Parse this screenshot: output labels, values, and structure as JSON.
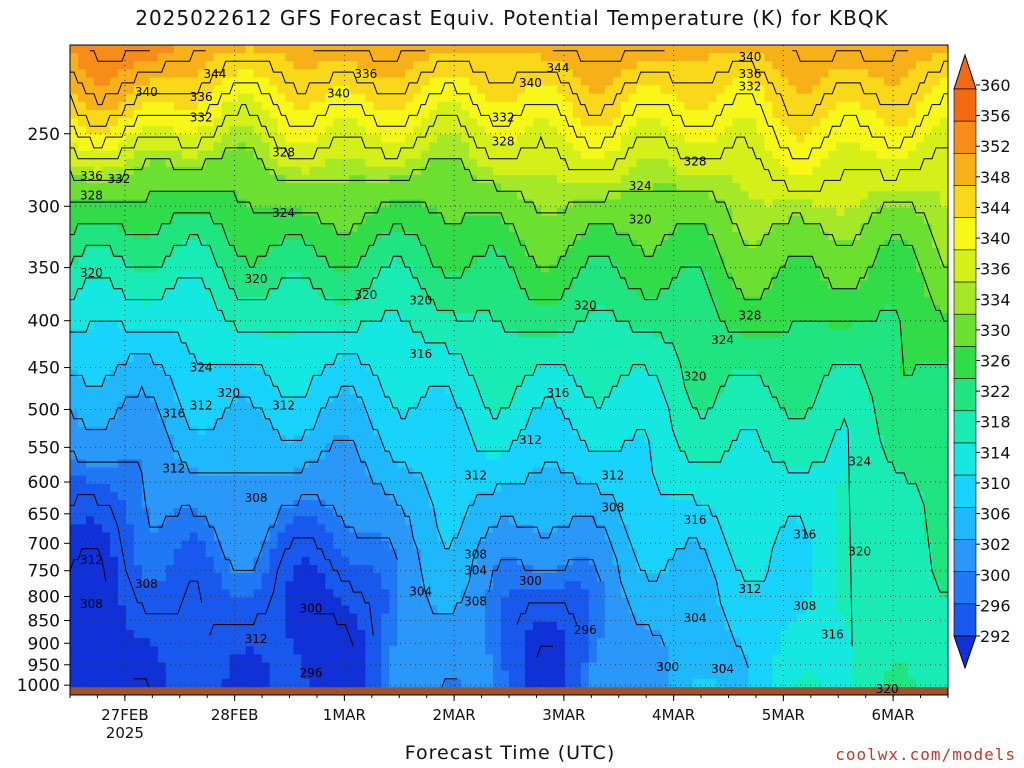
{
  "chart_data": {
    "type": "heatmap",
    "title": "2025022612 GFS Forecast Equiv. Potential Temperature (K) for KBQK",
    "xlabel": "Forecast Time (UTC)",
    "ylabel": "",
    "credit": "coolwx.com/models",
    "x_ticks": [
      "27FEB",
      "28FEB",
      "1MAR",
      "2MAR",
      "3MAR",
      "4MAR",
      "5MAR",
      "6MAR"
    ],
    "x_tick_sublabel": "2025",
    "x_range": [
      "2025-02-26T12",
      "2025-03-06T12"
    ],
    "y_ticks": [
      250,
      300,
      350,
      400,
      450,
      500,
      550,
      600,
      650,
      700,
      750,
      800,
      850,
      900,
      950,
      1000
    ],
    "y_range": [
      200,
      1025
    ],
    "y_scale": "log",
    "colorbar": {
      "levels": [
        292,
        296,
        300,
        302,
        306,
        310,
        314,
        318,
        322,
        326,
        330,
        334,
        336,
        340,
        344,
        348,
        352,
        356,
        360
      ],
      "colors": [
        "#1030d8",
        "#1858ec",
        "#2078f4",
        "#2a98f8",
        "#20b8fc",
        "#18d4fc",
        "#14e8e0",
        "#18ecb4",
        "#20e480",
        "#30dc48",
        "#6ce030",
        "#a4e828",
        "#d4f018",
        "#f8f818",
        "#f8d818",
        "#f8b018",
        "#f88c18",
        "#f46a10"
      ],
      "extend": "both"
    },
    "grid": true,
    "contour_labels": [
      {
        "t": "2025-02-27T00",
        "p": 225,
        "v": "340"
      },
      {
        "t": "2025-02-27T15",
        "p": 215,
        "v": "344"
      },
      {
        "t": "2025-02-27T12",
        "p": 228,
        "v": "336"
      },
      {
        "t": "2025-02-27T12",
        "p": 240,
        "v": "332"
      },
      {
        "t": "2025-02-26T12",
        "p": 278,
        "v": "336"
      },
      {
        "t": "2025-02-26T12",
        "p": 292,
        "v": "328"
      },
      {
        "t": "2025-02-26T18",
        "p": 280,
        "v": "332"
      },
      {
        "t": "2025-02-26T12",
        "p": 355,
        "v": "320"
      },
      {
        "t": "2025-02-28T06",
        "p": 262,
        "v": "328"
      },
      {
        "t": "2025-02-28T06",
        "p": 305,
        "v": "324"
      },
      {
        "t": "2025-02-28T18",
        "p": 226,
        "v": "340"
      },
      {
        "t": "2025-03-01T00",
        "p": 215,
        "v": "336"
      },
      {
        "t": "2025-03-01T00",
        "p": 375,
        "v": "320"
      },
      {
        "t": "2025-02-28T00",
        "p": 360,
        "v": "320"
      },
      {
        "t": "2025-03-01T12",
        "p": 435,
        "v": "316"
      },
      {
        "t": "2025-03-01T12",
        "p": 380,
        "v": "320"
      },
      {
        "t": "2025-03-02T06",
        "p": 255,
        "v": "328"
      },
      {
        "t": "2025-03-02T06",
        "p": 240,
        "v": "332"
      },
      {
        "t": "2025-03-02T12",
        "p": 220,
        "v": "340"
      },
      {
        "t": "2025-03-02T18",
        "p": 212,
        "v": "344"
      },
      {
        "t": "2025-03-03T12",
        "p": 285,
        "v": "324"
      },
      {
        "t": "2025-03-03T12",
        "p": 310,
        "v": "320"
      },
      {
        "t": "2025-03-04T00",
        "p": 268,
        "v": "328"
      },
      {
        "t": "2025-03-04T12",
        "p": 206,
        "v": "340"
      },
      {
        "t": "2025-03-04T12",
        "p": 215,
        "v": "336"
      },
      {
        "t": "2025-03-04T12",
        "p": 222,
        "v": "332"
      },
      {
        "t": "2025-03-03T00",
        "p": 385,
        "v": "320"
      },
      {
        "t": "2025-03-04T12",
        "p": 395,
        "v": "328"
      },
      {
        "t": "2025-03-04T06",
        "p": 420,
        "v": "324"
      },
      {
        "t": "2025-03-04T00",
        "p": 460,
        "v": "320"
      },
      {
        "t": "2025-02-27T12",
        "p": 450,
        "v": "324"
      },
      {
        "t": "2025-02-27T18",
        "p": 480,
        "v": "320"
      },
      {
        "t": "2025-02-27T06",
        "p": 505,
        "v": "316"
      },
      {
        "t": "2025-02-27T12",
        "p": 495,
        "v": "312"
      },
      {
        "t": "2025-02-28T06",
        "p": 495,
        "v": "312"
      },
      {
        "t": "2025-03-02T18",
        "p": 480,
        "v": "316"
      },
      {
        "t": "2025-03-02T12",
        "p": 540,
        "v": "312"
      },
      {
        "t": "2025-03-03T06",
        "p": 590,
        "v": "312"
      },
      {
        "t": "2025-03-05T12",
        "p": 570,
        "v": "324"
      },
      {
        "t": "2025-03-02T00",
        "p": 590,
        "v": "312"
      },
      {
        "t": "2025-02-27T06",
        "p": 580,
        "v": "312"
      },
      {
        "t": "2025-02-28T00",
        "p": 625,
        "v": "308"
      },
      {
        "t": "2025-03-03T06",
        "p": 640,
        "v": "308"
      },
      {
        "t": "2025-03-04T00",
        "p": 660,
        "v": "316"
      },
      {
        "t": "2025-03-05T00",
        "p": 685,
        "v": "316"
      },
      {
        "t": "2025-03-05T12",
        "p": 715,
        "v": "320"
      },
      {
        "t": "2025-02-26T12",
        "p": 730,
        "v": "312"
      },
      {
        "t": "2025-02-27T00",
        "p": 775,
        "v": "308"
      },
      {
        "t": "2025-02-26T12",
        "p": 815,
        "v": "308"
      },
      {
        "t": "2025-03-02T00",
        "p": 720,
        "v": "308"
      },
      {
        "t": "2025-03-02T00",
        "p": 750,
        "v": "304"
      },
      {
        "t": "2025-03-02T12",
        "p": 770,
        "v": "300"
      },
      {
        "t": "2025-03-01T12",
        "p": 790,
        "v": "304"
      },
      {
        "t": "2025-03-02T00",
        "p": 810,
        "v": "308"
      },
      {
        "t": "2025-02-28T12",
        "p": 825,
        "v": "300"
      },
      {
        "t": "2025-02-28T00",
        "p": 890,
        "v": "312"
      },
      {
        "t": "2025-02-28T12",
        "p": 970,
        "v": "296"
      },
      {
        "t": "2025-03-03T00",
        "p": 870,
        "v": "296"
      },
      {
        "t": "2025-03-04T00",
        "p": 845,
        "v": "304"
      },
      {
        "t": "2025-03-03T18",
        "p": 955,
        "v": "300"
      },
      {
        "t": "2025-03-04T06",
        "p": 960,
        "v": "304"
      },
      {
        "t": "2025-03-04T12",
        "p": 785,
        "v": "312"
      },
      {
        "t": "2025-03-05T00",
        "p": 820,
        "v": "308"
      },
      {
        "t": "2025-03-05T06",
        "p": 880,
        "v": "316"
      },
      {
        "t": "2025-03-05T18",
        "p": 1010,
        "v": "320"
      }
    ]
  }
}
